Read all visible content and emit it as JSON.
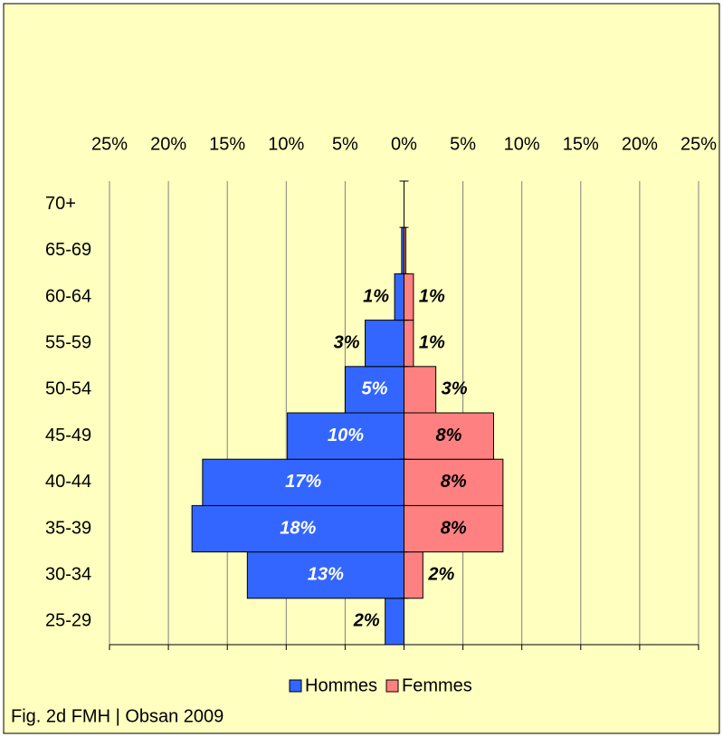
{
  "chart_data": {
    "type": "pyramid",
    "categories": [
      "25-29",
      "30-34",
      "35-39",
      "40-44",
      "45-49",
      "50-54",
      "55-59",
      "60-64",
      "65-69",
      "70+"
    ],
    "series": [
      {
        "name": "Hommes",
        "color": "#3366ff",
        "values": [
          -1.6,
          -13.3,
          -18.0,
          -17.1,
          -9.9,
          -5.0,
          -3.3,
          -0.8,
          -0.2,
          0
        ],
        "value_labels": [
          "2%",
          "13%",
          "18%",
          "17%",
          "10%",
          "5%",
          "3%",
          "1%",
          null,
          null
        ]
      },
      {
        "name": "Femmes",
        "color": "#ff8080",
        "values": [
          0,
          1.6,
          8.4,
          8.4,
          7.6,
          2.7,
          0.8,
          0.8,
          0.15,
          0
        ],
        "value_labels": [
          null,
          "2%",
          "8%",
          "8%",
          "8%",
          "3%",
          "1%",
          "1%",
          null,
          null
        ]
      }
    ],
    "xlim": [
      -25,
      25
    ],
    "xticks": [
      {
        "value": -25,
        "label": "25%"
      },
      {
        "value": -20,
        "label": "20%"
      },
      {
        "value": -15,
        "label": "15%"
      },
      {
        "value": -10,
        "label": "10%"
      },
      {
        "value": -5,
        "label": "5%"
      },
      {
        "value": 0,
        "label": "0%"
      },
      {
        "value": 5,
        "label": "5%"
      },
      {
        "value": 10,
        "label": "10%"
      },
      {
        "value": 15,
        "label": "15%"
      },
      {
        "value": 20,
        "label": "20%"
      },
      {
        "value": 25,
        "label": "25%"
      }
    ],
    "grid": true,
    "footnote": "Fig. 2d FMH | Obsan 2009"
  }
}
